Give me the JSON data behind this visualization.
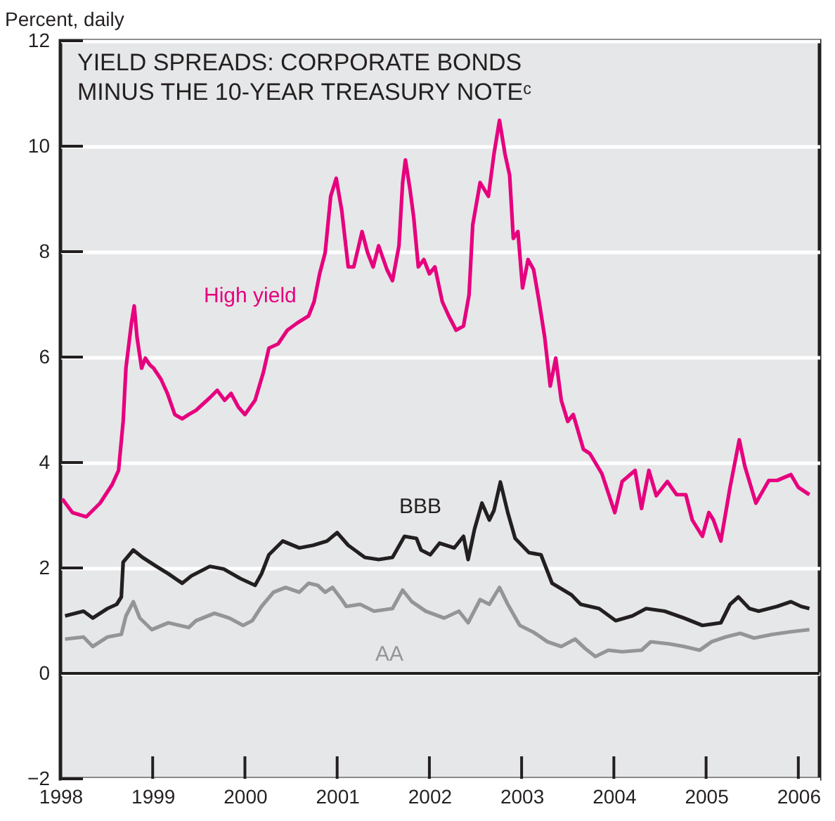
{
  "chart_data": {
    "type": "line",
    "title": "YIELD SPREADS: CORPORATE BONDS\nMINUS THE 10-YEAR TREASURY NOTEᶜ",
    "ylabel": "Percent, daily",
    "xlim": [
      1998,
      2006.23
    ],
    "xticks": [
      1998,
      1999,
      2000,
      2001,
      2002,
      2003,
      2004,
      2005,
      2006
    ],
    "ylim": [
      -2,
      12
    ],
    "yticks": [
      -2,
      0,
      2,
      4,
      6,
      8,
      10,
      12
    ],
    "grid": "y",
    "marker": "none",
    "line_style": "solid",
    "ref_lines": [
      {
        "axis": "y",
        "value": 0,
        "label": null,
        "color": "#231f20"
      }
    ],
    "series": [
      {
        "name": "High yield",
        "color": "#e6007e",
        "x": [
          1998.02,
          1998.13,
          1998.28,
          1998.43,
          1998.56,
          1998.63,
          1998.68,
          1998.71,
          1998.77,
          1998.8,
          1998.83,
          1998.88,
          1998.92,
          1998.97,
          1999.01,
          1999.09,
          1999.16,
          1999.24,
          1999.32,
          1999.39,
          1999.47,
          1999.62,
          1999.7,
          1999.78,
          1999.85,
          1999.93,
          2000.0,
          2000.11,
          2000.2,
          2000.26,
          2000.36,
          2000.46,
          2000.57,
          2000.69,
          2000.75,
          2000.81,
          2000.87,
          2000.93,
          2000.99,
          2001.05,
          2001.12,
          2001.18,
          2001.27,
          2001.33,
          2001.39,
          2001.45,
          2001.54,
          2001.6,
          2001.67,
          2001.71,
          2001.74,
          2001.79,
          2001.83,
          2001.88,
          2001.94,
          2002.0,
          2002.06,
          2002.14,
          2002.21,
          2002.29,
          2002.37,
          2002.43,
          2002.47,
          2002.55,
          2002.64,
          2002.7,
          2002.76,
          2002.82,
          2002.87,
          2002.91,
          2002.96,
          2003.01,
          2003.07,
          2003.13,
          2003.19,
          2003.25,
          2003.31,
          2003.37,
          2003.43,
          2003.5,
          2003.56,
          2003.67,
          2003.74,
          2003.87,
          2004.01,
          2004.09,
          2004.23,
          2004.3,
          2004.38,
          2004.46,
          2004.58,
          2004.68,
          2004.78,
          2004.85,
          2004.96,
          2005.03,
          2005.08,
          2005.16,
          2005.26,
          2005.36,
          2005.42,
          2005.54,
          2005.68,
          2005.77,
          2005.92,
          2006.0,
          2006.12
        ],
        "values": [
          3.31,
          3.05,
          2.97,
          3.23,
          3.58,
          3.85,
          4.78,
          5.79,
          6.65,
          6.97,
          6.38,
          5.79,
          5.98,
          5.85,
          5.79,
          5.58,
          5.31,
          4.91,
          4.83,
          4.91,
          4.99,
          5.23,
          5.37,
          5.18,
          5.31,
          5.05,
          4.91,
          5.18,
          5.71,
          6.17,
          6.25,
          6.51,
          6.65,
          6.78,
          7.05,
          7.58,
          7.98,
          9.05,
          9.39,
          8.78,
          7.71,
          7.71,
          8.38,
          7.98,
          7.71,
          8.11,
          7.66,
          7.45,
          8.11,
          9.31,
          9.74,
          9.18,
          8.65,
          7.71,
          7.85,
          7.58,
          7.71,
          7.05,
          6.78,
          6.51,
          6.59,
          7.18,
          8.51,
          9.31,
          9.05,
          9.85,
          10.49,
          9.85,
          9.45,
          8.25,
          8.38,
          7.31,
          7.85,
          7.66,
          7.05,
          6.38,
          5.45,
          5.98,
          5.18,
          4.78,
          4.91,
          4.25,
          4.17,
          3.79,
          3.05,
          3.64,
          3.85,
          3.13,
          3.85,
          3.37,
          3.64,
          3.39,
          3.39,
          2.91,
          2.6,
          3.05,
          2.91,
          2.51,
          3.53,
          4.43,
          3.93,
          3.23,
          3.66,
          3.66,
          3.77,
          3.53,
          3.39
        ]
      },
      {
        "name": "BBB",
        "color": "#231f20",
        "x": [
          1998.05,
          1998.25,
          1998.35,
          1998.51,
          1998.61,
          1998.66,
          1998.68,
          1998.79,
          1998.89,
          1999.04,
          1999.17,
          1999.32,
          1999.42,
          1999.62,
          1999.77,
          1999.95,
          2000.11,
          2000.18,
          2000.26,
          2000.41,
          2000.59,
          2000.74,
          2000.89,
          2001.0,
          2001.12,
          2001.3,
          2001.45,
          2001.6,
          2001.73,
          2001.86,
          2001.91,
          2002.01,
          2002.11,
          2002.27,
          2002.37,
          2002.42,
          2002.49,
          2002.57,
          2002.65,
          2002.7,
          2002.77,
          2002.85,
          2002.93,
          2003.08,
          2003.21,
          2003.33,
          2003.54,
          2003.64,
          2003.84,
          2004.02,
          2004.2,
          2004.35,
          2004.55,
          2004.76,
          2004.96,
          2005.16,
          2005.26,
          2005.35,
          2005.47,
          2005.57,
          2005.77,
          2005.92,
          2006.03,
          2006.12
        ],
        "values": [
          1.09,
          1.18,
          1.05,
          1.23,
          1.31,
          1.45,
          2.11,
          2.34,
          2.2,
          2.03,
          1.89,
          1.71,
          1.85,
          2.03,
          1.98,
          1.8,
          1.67,
          1.89,
          2.25,
          2.51,
          2.38,
          2.43,
          2.51,
          2.67,
          2.43,
          2.2,
          2.16,
          2.2,
          2.6,
          2.56,
          2.34,
          2.25,
          2.47,
          2.38,
          2.6,
          2.16,
          2.74,
          3.23,
          2.91,
          3.09,
          3.63,
          3.05,
          2.56,
          2.29,
          2.25,
          1.71,
          1.49,
          1.31,
          1.23,
          1.0,
          1.09,
          1.23,
          1.18,
          1.05,
          0.91,
          0.96,
          1.31,
          1.45,
          1.23,
          1.18,
          1.27,
          1.36,
          1.27,
          1.23
        ]
      },
      {
        "name": "AA",
        "color": "#939598",
        "x": [
          1998.05,
          1998.25,
          1998.35,
          1998.51,
          1998.66,
          1998.71,
          1998.79,
          1998.86,
          1998.99,
          1999.17,
          1999.39,
          1999.47,
          1999.67,
          1999.83,
          1999.98,
          2000.08,
          2000.18,
          2000.31,
          2000.44,
          2000.59,
          2000.69,
          2000.79,
          2000.87,
          2000.95,
          2001.05,
          2001.1,
          2001.25,
          2001.4,
          2001.6,
          2001.71,
          2001.81,
          2001.96,
          2002.16,
          2002.32,
          2002.42,
          2002.55,
          2002.65,
          2002.76,
          2002.85,
          2002.98,
          2003.13,
          2003.28,
          2003.43,
          2003.58,
          2003.69,
          2003.8,
          2003.94,
          2004.09,
          2004.3,
          2004.4,
          2004.6,
          2004.76,
          2004.93,
          2005.06,
          2005.21,
          2005.37,
          2005.52,
          2005.72,
          2005.92,
          2006.12
        ],
        "values": [
          0.65,
          0.69,
          0.51,
          0.69,
          0.74,
          1.09,
          1.36,
          1.05,
          0.83,
          0.96,
          0.87,
          1.0,
          1.14,
          1.05,
          0.91,
          1.0,
          1.27,
          1.54,
          1.63,
          1.54,
          1.71,
          1.67,
          1.54,
          1.63,
          1.4,
          1.27,
          1.31,
          1.18,
          1.23,
          1.58,
          1.36,
          1.18,
          1.05,
          1.18,
          0.96,
          1.4,
          1.31,
          1.63,
          1.31,
          0.91,
          0.78,
          0.6,
          0.51,
          0.65,
          0.47,
          0.32,
          0.44,
          0.41,
          0.44,
          0.6,
          0.56,
          0.51,
          0.44,
          0.6,
          0.69,
          0.76,
          0.67,
          0.74,
          0.79,
          0.83
        ]
      }
    ]
  }
}
